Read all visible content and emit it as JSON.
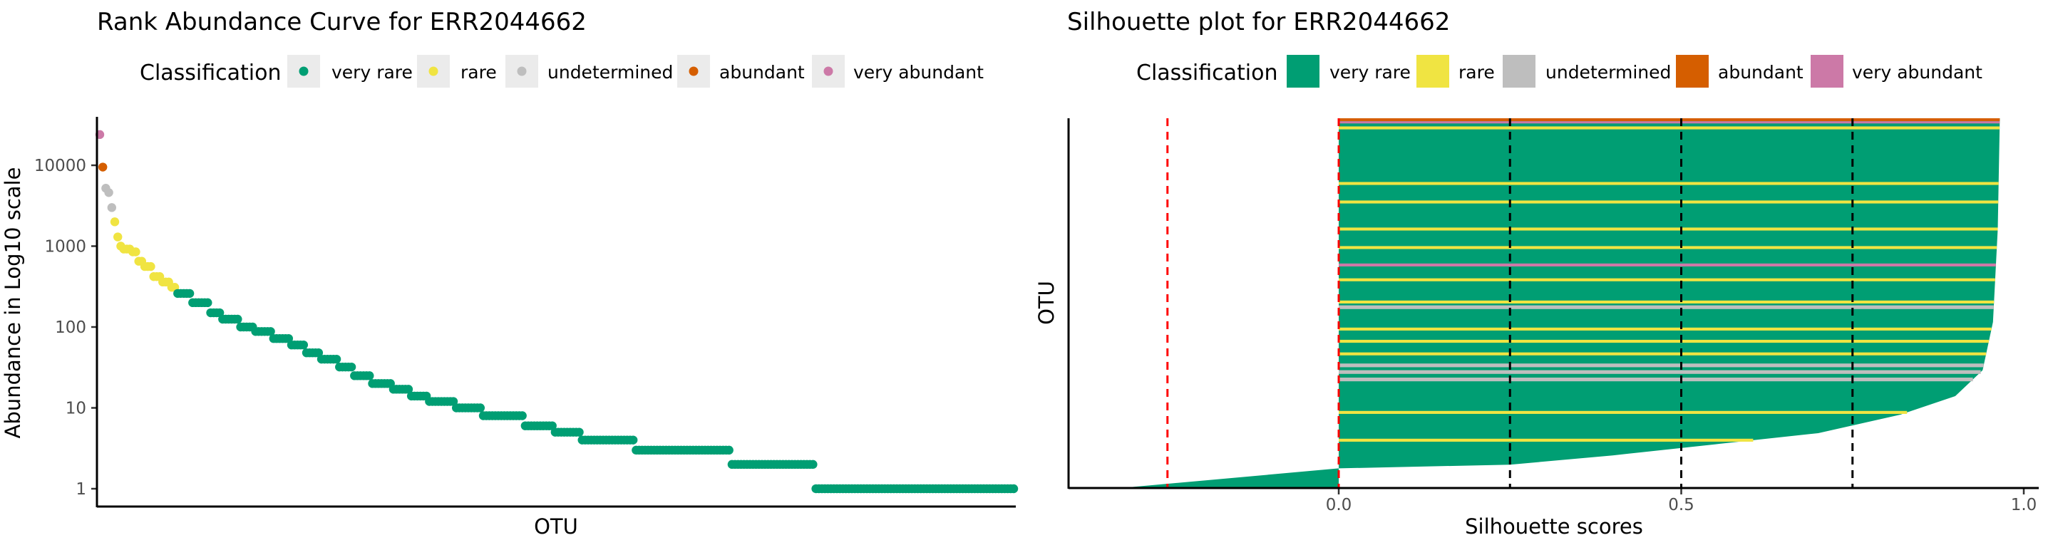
{
  "chart_data": [
    {
      "type": "scatter",
      "title": "Rank Abundance Curve for  ERR2044662",
      "xlabel": "OTU",
      "ylabel": "Abundance in Log10 scale",
      "yscale": "log10",
      "ylim": [
        0.8,
        40000
      ],
      "yticks": [
        "1",
        "10",
        "100",
        "1000",
        "10000"
      ],
      "legend": {
        "title": "Classification",
        "position": "top",
        "entries": [
          "very rare",
          "rare",
          "undetermined",
          "abundant",
          "very abundant"
        ]
      },
      "colors": {
        "very rare": "#009e73",
        "rare": "#f0e442",
        "undetermined": "#bebebe",
        "abundant": "#d55e00",
        "very abundant": "#cc79a7"
      },
      "rank_bands": [
        {
          "class": "very abundant",
          "value": 24000,
          "count": 1
        },
        {
          "class": "abundant",
          "value": 9500,
          "count": 1
        },
        {
          "class": "undetermined",
          "value": 5200,
          "count": 1
        },
        {
          "class": "undetermined",
          "value": 4600,
          "count": 1
        },
        {
          "class": "undetermined",
          "value": 3000,
          "count": 1
        },
        {
          "class": "rare",
          "value": 2000,
          "count": 1
        },
        {
          "class": "rare",
          "value": 1300,
          "count": 1
        },
        {
          "class": "rare",
          "value": 1000,
          "count": 1
        },
        {
          "class": "rare",
          "value": 920,
          "count": 3
        },
        {
          "class": "rare",
          "value": 850,
          "count": 2
        },
        {
          "class": "rare",
          "value": 650,
          "count": 2
        },
        {
          "class": "rare",
          "value": 560,
          "count": 3
        },
        {
          "class": "rare",
          "value": 420,
          "count": 3
        },
        {
          "class": "rare",
          "value": 360,
          "count": 3
        },
        {
          "class": "rare",
          "value": 310,
          "count": 2
        },
        {
          "class": "very rare",
          "value": 260,
          "count": 5
        },
        {
          "class": "very rare",
          "value": 200,
          "count": 6
        },
        {
          "class": "very rare",
          "value": 150,
          "count": 4
        },
        {
          "class": "very rare",
          "value": 125,
          "count": 6
        },
        {
          "class": "very rare",
          "value": 100,
          "count": 5
        },
        {
          "class": "very rare",
          "value": 88,
          "count": 6
        },
        {
          "class": "very rare",
          "value": 72,
          "count": 6
        },
        {
          "class": "very rare",
          "value": 60,
          "count": 5
        },
        {
          "class": "very rare",
          "value": 48,
          "count": 5
        },
        {
          "class": "very rare",
          "value": 40,
          "count": 6
        },
        {
          "class": "very rare",
          "value": 32,
          "count": 5
        },
        {
          "class": "very rare",
          "value": 25,
          "count": 6
        },
        {
          "class": "very rare",
          "value": 20,
          "count": 7
        },
        {
          "class": "very rare",
          "value": 17,
          "count": 6
        },
        {
          "class": "very rare",
          "value": 14,
          "count": 6
        },
        {
          "class": "very rare",
          "value": 12,
          "count": 9
        },
        {
          "class": "very rare",
          "value": 10,
          "count": 9
        },
        {
          "class": "very rare",
          "value": 8,
          "count": 14
        },
        {
          "class": "very rare",
          "value": 6,
          "count": 10
        },
        {
          "class": "very rare",
          "value": 5,
          "count": 9
        },
        {
          "class": "very rare",
          "value": 4,
          "count": 18
        },
        {
          "class": "very rare",
          "value": 3,
          "count": 32
        },
        {
          "class": "very rare",
          "value": 2,
          "count": 28
        },
        {
          "class": "very rare",
          "value": 1,
          "count": 67
        }
      ]
    },
    {
      "type": "bar",
      "orientation": "horizontal",
      "title": "Silhouette plot for ERR2044662",
      "xlabel": "Silhouette scores",
      "ylabel": "OTU",
      "xlim": [
        -0.35,
        1.0
      ],
      "xticks": [
        "0.0",
        "0.5",
        "1.0"
      ],
      "red_reference_line": -0.25,
      "zero_line": 0,
      "black_reference_lines": [
        0.25,
        0.5,
        0.75
      ],
      "legend": {
        "title": "Classification",
        "position": "top",
        "entries": [
          "very rare",
          "rare",
          "undetermined",
          "abundant",
          "very abundant"
        ]
      },
      "colors": {
        "very rare": "#009e73",
        "rare": "#f0e442",
        "undetermined": "#bebebe",
        "abundant": "#d55e00",
        "very abundant": "#cc79a7"
      },
      "score_profile": [
        {
          "position": 0.0,
          "score": 0.965
        },
        {
          "position": 0.3,
          "score": 0.962
        },
        {
          "position": 0.55,
          "score": 0.955
        },
        {
          "position": 0.68,
          "score": 0.94
        },
        {
          "position": 0.75,
          "score": 0.9
        },
        {
          "position": 0.8,
          "score": 0.82
        },
        {
          "position": 0.85,
          "score": 0.7
        },
        {
          "position": 0.88,
          "score": 0.55
        },
        {
          "position": 0.91,
          "score": 0.4
        },
        {
          "position": 0.935,
          "score": 0.25
        },
        {
          "position": 0.945,
          "score": 0.0
        },
        {
          "position": 1.0,
          "score": -0.33
        }
      ],
      "otu_bands": [
        {
          "class": "abundant",
          "start": 0.0,
          "end": 0.008
        },
        {
          "class": "very abundant",
          "start": 0.008,
          "end": 0.014
        },
        {
          "class": "rare",
          "start": 0.022,
          "end": 0.03
        },
        {
          "class": "rare",
          "start": 0.172,
          "end": 0.18
        },
        {
          "class": "rare",
          "start": 0.222,
          "end": 0.23
        },
        {
          "class": "rare",
          "start": 0.295,
          "end": 0.303
        },
        {
          "class": "rare",
          "start": 0.345,
          "end": 0.353
        },
        {
          "class": "very abundant",
          "start": 0.392,
          "end": 0.4
        },
        {
          "class": "rare",
          "start": 0.432,
          "end": 0.44
        },
        {
          "class": "rare",
          "start": 0.492,
          "end": 0.5
        },
        {
          "class": "undetermined",
          "start": 0.505,
          "end": 0.515
        },
        {
          "class": "rare",
          "start": 0.565,
          "end": 0.573
        },
        {
          "class": "rare",
          "start": 0.598,
          "end": 0.606
        },
        {
          "class": "rare",
          "start": 0.632,
          "end": 0.64
        },
        {
          "class": "undetermined",
          "start": 0.662,
          "end": 0.672
        },
        {
          "class": "undetermined",
          "start": 0.68,
          "end": 0.69
        },
        {
          "class": "undetermined",
          "start": 0.7,
          "end": 0.71
        },
        {
          "class": "rare",
          "start": 0.79,
          "end": 0.798
        },
        {
          "class": "rare",
          "start": 0.865,
          "end": 0.873
        }
      ]
    }
  ]
}
